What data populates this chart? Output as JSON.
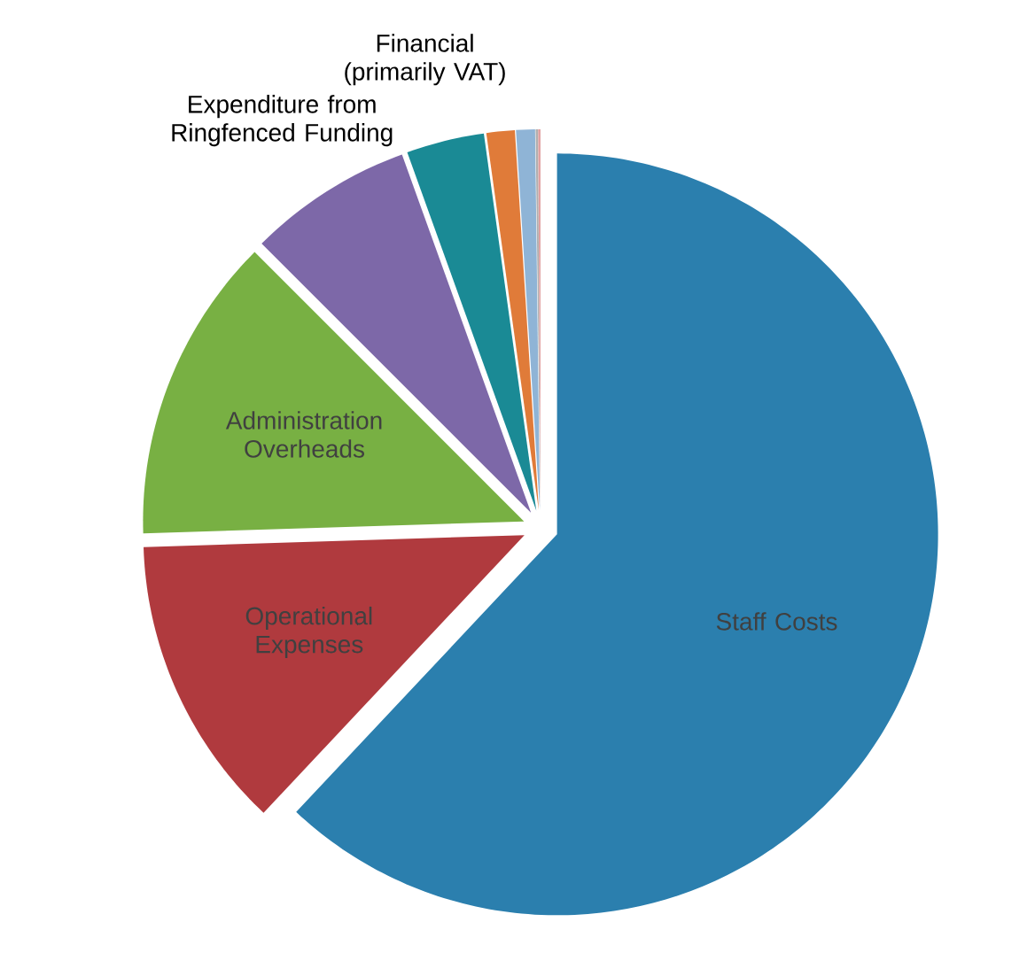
{
  "chart_data": {
    "type": "pie",
    "categories": [
      "Staff Costs",
      "Operational Expenses",
      "Administration Overheads",
      "Expenditure from Ringfenced Funding",
      "Financial (primarily VAT)",
      null,
      null,
      null,
      null
    ],
    "values": [
      62,
      12.5,
      13,
      7,
      3.3,
      1.2,
      0.8,
      0.1,
      0.1
    ],
    "colors": [
      "#2b7fae",
      "#b03a3e",
      "#78b043",
      "#7d68a8",
      "#1a8a95",
      "#e07b39",
      "#8fb4d6",
      "#b0b0b0",
      "#e0a0a0"
    ]
  }
}
